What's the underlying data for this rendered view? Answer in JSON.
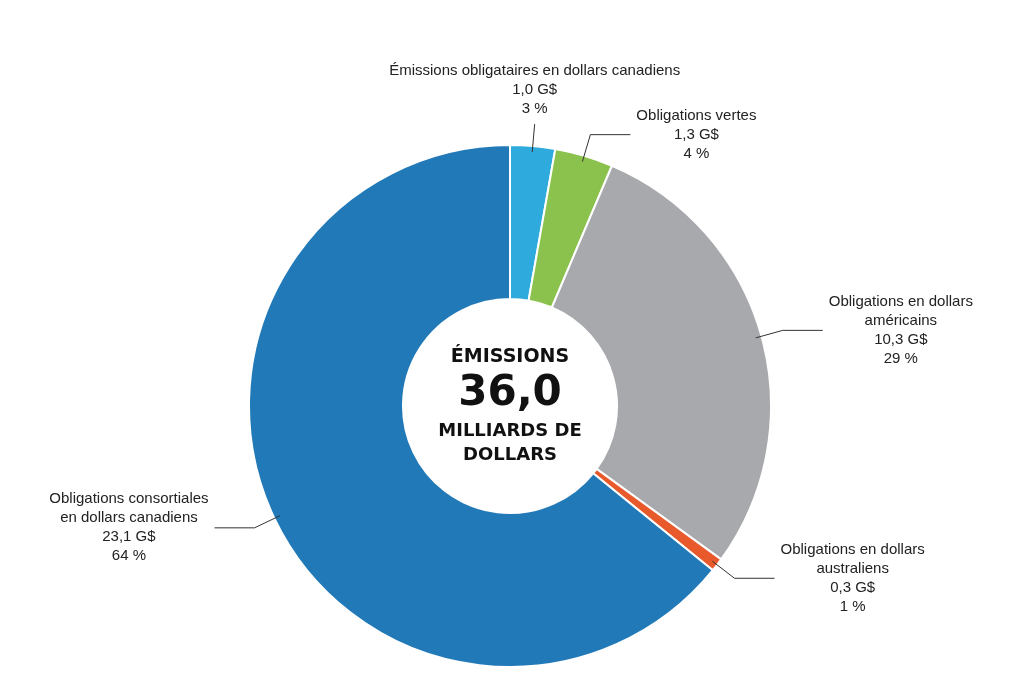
{
  "chart_data": {
    "type": "donut",
    "categories": [
      "Émissions obligataires en dollars canadiens",
      "Obligations vertes",
      "Obligations en dollars américains",
      "Obligations en dollars australiens",
      "Obligations consortiales en dollars canadiens"
    ],
    "values": [
      1.0,
      1.3,
      10.3,
      0.3,
      23.1
    ],
    "colors": [
      "#2eaadc",
      "#8bc14d",
      "#a7a9ac",
      "#e8592b",
      "#2279b8"
    ],
    "value_labels": [
      "1,0 G$\n3 %",
      "1,3 G$\n4 %",
      "10,3 G$\n29 %",
      "0,3 G$\n1 %",
      "23,1 G$\n64 %"
    ],
    "annotations": [
      "ÉMISSIONS",
      "36,0",
      "MILLIARDS DE DOLLARS"
    ],
    "legend": false
  }
}
